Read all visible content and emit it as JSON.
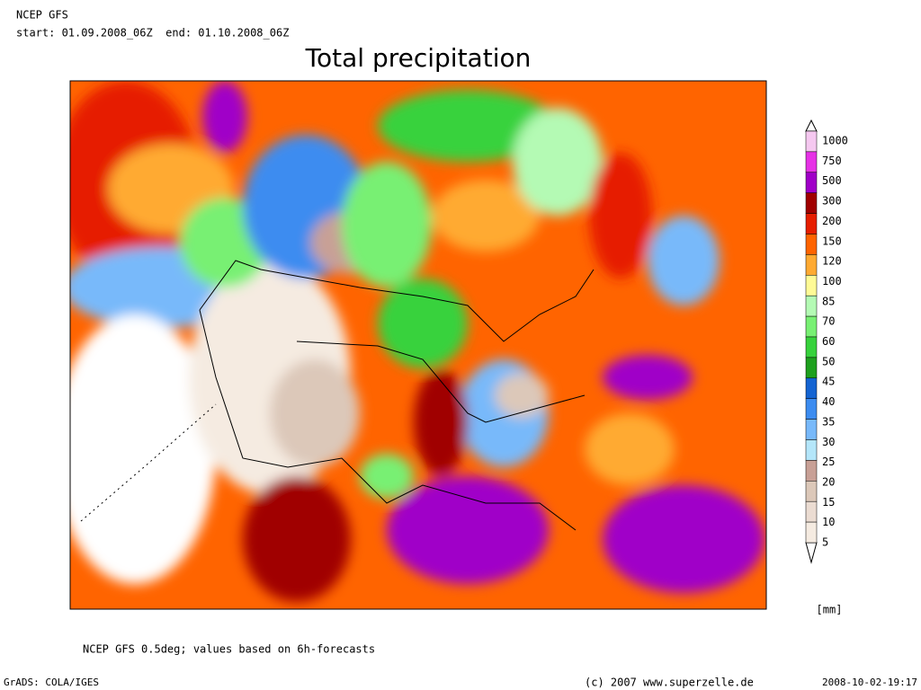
{
  "header": {
    "line1": "NCEP GFS",
    "line2": "start: 01.09.2008_06Z  end: 01.10.2008_06Z",
    "title": "Total precipitation"
  },
  "legend": {
    "unit": "[mm]",
    "levels": [
      1000,
      750,
      500,
      300,
      200,
      150,
      120,
      100,
      85,
      70,
      60,
      50,
      45,
      40,
      35,
      30,
      25,
      20,
      15,
      10,
      5
    ],
    "colors": [
      "#f5c8f0",
      "#e632e6",
      "#a000c8",
      "#a00000",
      "#e61e00",
      "#ff6400",
      "#ffaa32",
      "#fffa96",
      "#b4fab4",
      "#78f073",
      "#37d23c",
      "#1ea01e",
      "#1464d2",
      "#3c8cf0",
      "#78b9fa",
      "#b4e6fa",
      "#c8a096",
      "#dcc8b9",
      "#ebdcd2",
      "#f5ebe1"
    ]
  },
  "footer": {
    "note": "NCEP GFS 0.5deg; values based on 6h-forecasts",
    "software": "GrADS: COLA/IGES",
    "copyright": "(c) 2007 www.superzelle.de",
    "timestamp": "2008-10-02-19:17"
  }
}
